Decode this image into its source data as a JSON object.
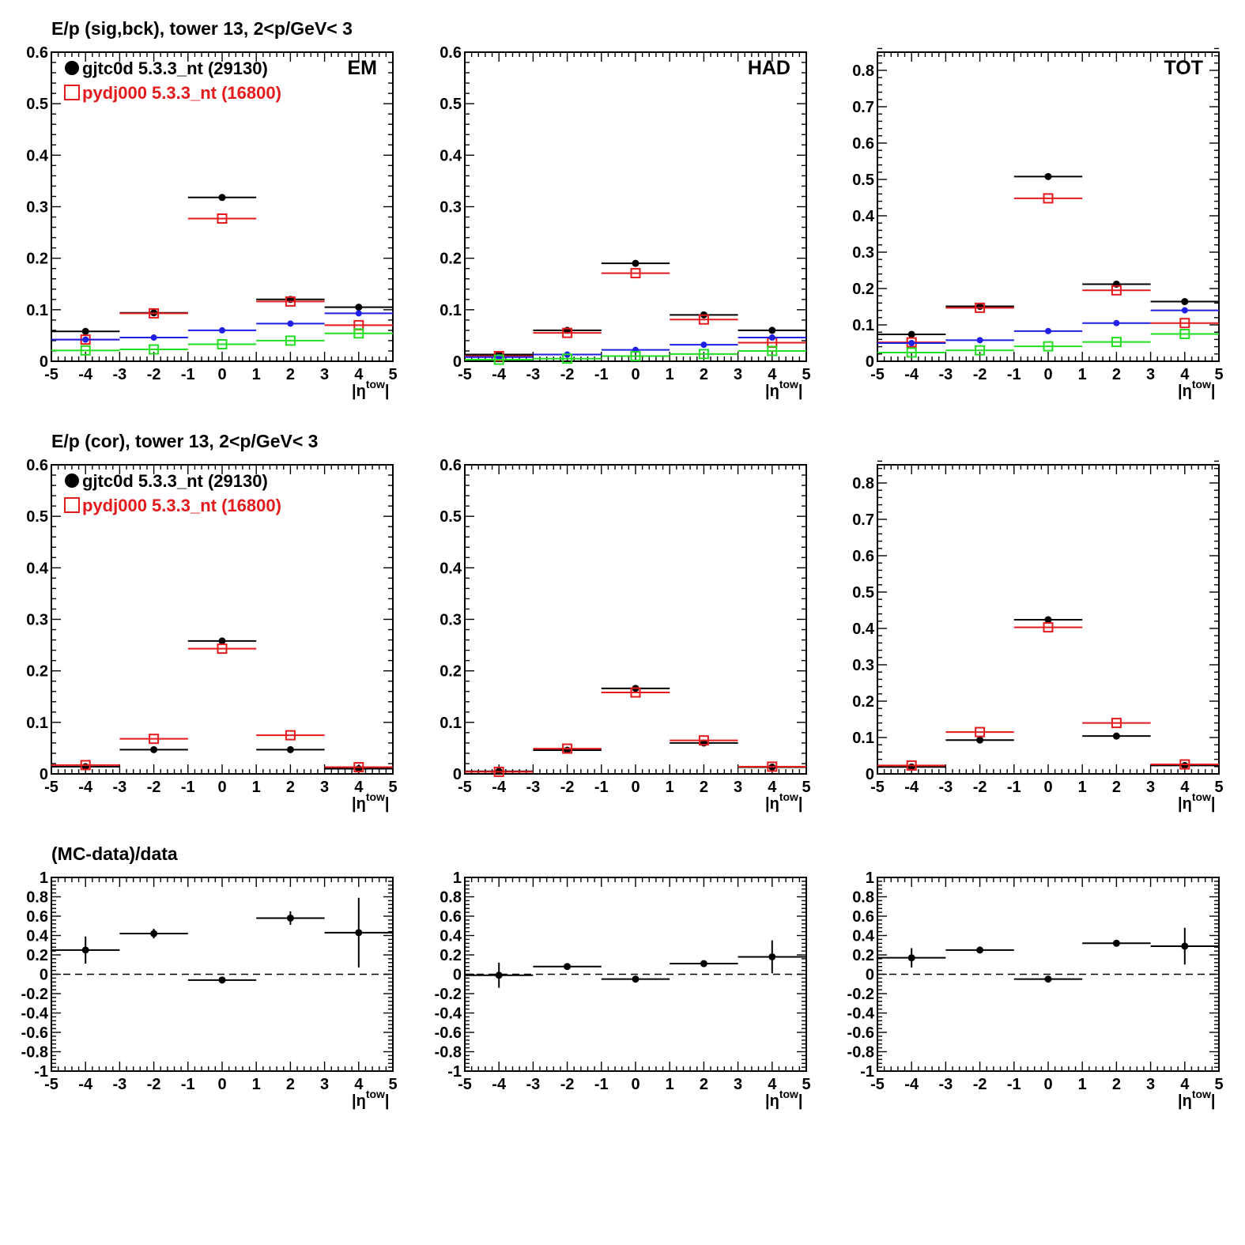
{
  "figure": {
    "row_titles": [
      "E/p (sig,bck), tower 13,  2<p/GeV< 3",
      "E/p (cor), tower 13,  2<p/GeV< 3",
      "(MC-data)/data"
    ],
    "xlabel": "|η",
    "xlabel_sup": "tow",
    "xlabel_end": "|",
    "legend": [
      {
        "label": "gjtc0d 5.3.3_nt (29130)",
        "color": "#000000",
        "marker": "filled-circle"
      },
      {
        "label": "pydj000 5.3.3_nt (16800)",
        "color": "#e41a1c",
        "marker": "open-square"
      }
    ],
    "colors": {
      "data": "#000000",
      "mc": "#e41a1c",
      "blue": "#1f1fe6",
      "green": "#22dd22",
      "reference_line": "#000000"
    }
  },
  "chart_data": [
    {
      "type": "scatter",
      "panel": "sig-bck-em",
      "title": "E/p (sig,bck), tower 13,  2<p/GeV< 3",
      "label": "EM",
      "xlim": [
        -5,
        5
      ],
      "ylim": [
        0,
        0.6
      ],
      "xticks": [
        -5,
        -4,
        -3,
        -2,
        -1,
        0,
        1,
        2,
        3,
        4,
        5
      ],
      "yticks": [
        0,
        0.1,
        0.2,
        0.3,
        0.4,
        0.5,
        0.6
      ],
      "x": [
        -4,
        -2,
        0,
        2,
        4
      ],
      "x_bin_halfwidth": 1,
      "legend": "top-left",
      "series": [
        {
          "name": "gjtc0d 5.3.3_nt (29130)",
          "marker": "filled-circle",
          "color": "#000000",
          "values": [
            0.058,
            0.094,
            0.318,
            0.12,
            0.105
          ]
        },
        {
          "name": "pydj000 5.3.3_nt (16800)",
          "marker": "open-square",
          "color": "#e41a1c",
          "values": [
            0.042,
            0.093,
            0.277,
            0.116,
            0.07
          ]
        },
        {
          "marker": "filled-circle-small",
          "color": "#1f1fe6",
          "values": [
            0.042,
            0.046,
            0.06,
            0.073,
            0.093
          ]
        },
        {
          "marker": "open-square",
          "color": "#22dd22",
          "values": [
            0.021,
            0.023,
            0.033,
            0.04,
            0.054
          ]
        }
      ]
    },
    {
      "type": "scatter",
      "panel": "sig-bck-had",
      "label": "HAD",
      "xlim": [
        -5,
        5
      ],
      "ylim": [
        0,
        0.6
      ],
      "xticks": [
        -5,
        -4,
        -3,
        -2,
        -1,
        0,
        1,
        2,
        3,
        4,
        5
      ],
      "yticks": [
        0,
        0.1,
        0.2,
        0.3,
        0.4,
        0.5,
        0.6
      ],
      "x": [
        -4,
        -2,
        0,
        2,
        4
      ],
      "x_bin_halfwidth": 1,
      "series": [
        {
          "marker": "filled-circle",
          "color": "#000000",
          "values": [
            0.013,
            0.06,
            0.19,
            0.09,
            0.06
          ]
        },
        {
          "marker": "open-square",
          "color": "#e41a1c",
          "values": [
            0.01,
            0.055,
            0.171,
            0.081,
            0.036
          ]
        },
        {
          "marker": "filled-circle-small",
          "color": "#1f1fe6",
          "values": [
            0.008,
            0.013,
            0.022,
            0.032,
            0.046
          ]
        },
        {
          "marker": "open-square",
          "color": "#22dd22",
          "values": [
            0.003,
            0.005,
            0.01,
            0.014,
            0.02
          ]
        }
      ]
    },
    {
      "type": "scatter",
      "panel": "sig-bck-tot",
      "label": "TOT",
      "xlim": [
        -5,
        5
      ],
      "ylim": [
        0,
        0.85
      ],
      "xticks": [
        -5,
        -4,
        -3,
        -2,
        -1,
        0,
        1,
        2,
        3,
        4,
        5
      ],
      "yticks": [
        0,
        0.1,
        0.2,
        0.3,
        0.4,
        0.5,
        0.6,
        0.7,
        0.8
      ],
      "x": [
        -4,
        -2,
        0,
        2,
        4
      ],
      "x_bin_halfwidth": 1,
      "series": [
        {
          "marker": "filled-circle",
          "color": "#000000",
          "values": [
            0.074,
            0.151,
            0.508,
            0.212,
            0.164
          ]
        },
        {
          "marker": "open-square",
          "color": "#e41a1c",
          "values": [
            0.052,
            0.147,
            0.448,
            0.195,
            0.105
          ]
        },
        {
          "marker": "filled-circle-small",
          "color": "#1f1fe6",
          "values": [
            0.05,
            0.058,
            0.083,
            0.105,
            0.14
          ]
        },
        {
          "marker": "open-square",
          "color": "#22dd22",
          "values": [
            0.024,
            0.03,
            0.041,
            0.053,
            0.075
          ]
        }
      ]
    },
    {
      "type": "scatter",
      "panel": "cor-em",
      "title": "E/p (cor), tower 13,  2<p/GeV< 3",
      "xlim": [
        -5,
        5
      ],
      "ylim": [
        0,
        0.6
      ],
      "xticks": [
        -5,
        -4,
        -3,
        -2,
        -1,
        0,
        1,
        2,
        3,
        4,
        5
      ],
      "yticks": [
        0,
        0.1,
        0.2,
        0.3,
        0.4,
        0.5,
        0.6
      ],
      "x": [
        -4,
        -2,
        0,
        2,
        4
      ],
      "x_bin_halfwidth": 1,
      "legend": "top-left",
      "series": [
        {
          "name": "gjtc0d 5.3.3_nt (29130)",
          "marker": "filled-circle",
          "color": "#000000",
          "values": [
            0.014,
            0.047,
            0.258,
            0.047,
            0.01
          ]
        },
        {
          "name": "pydj000 5.3.3_nt (16800)",
          "marker": "open-square",
          "color": "#e41a1c",
          "values": [
            0.017,
            0.068,
            0.243,
            0.075,
            0.013
          ]
        }
      ]
    },
    {
      "type": "scatter",
      "panel": "cor-had",
      "xlim": [
        -5,
        5
      ],
      "ylim": [
        0,
        0.6
      ],
      "xticks": [
        -5,
        -4,
        -3,
        -2,
        -1,
        0,
        1,
        2,
        3,
        4,
        5
      ],
      "yticks": [
        0,
        0.1,
        0.2,
        0.3,
        0.4,
        0.5,
        0.6
      ],
      "x": [
        -4,
        -2,
        0,
        2,
        4
      ],
      "x_bin_halfwidth": 1,
      "series": [
        {
          "marker": "filled-circle",
          "color": "#000000",
          "values": [
            0.005,
            0.046,
            0.166,
            0.06,
            0.013
          ]
        },
        {
          "marker": "open-square",
          "color": "#e41a1c",
          "values": [
            0.004,
            0.049,
            0.158,
            0.065,
            0.014
          ]
        }
      ]
    },
    {
      "type": "scatter",
      "panel": "cor-tot",
      "xlim": [
        -5,
        5
      ],
      "ylim": [
        0,
        0.85
      ],
      "xticks": [
        -5,
        -4,
        -3,
        -2,
        -1,
        0,
        1,
        2,
        3,
        4,
        5
      ],
      "yticks": [
        0,
        0.1,
        0.2,
        0.3,
        0.4,
        0.5,
        0.6,
        0.7,
        0.8
      ],
      "x": [
        -4,
        -2,
        0,
        2,
        4
      ],
      "x_bin_halfwidth": 1,
      "series": [
        {
          "marker": "filled-circle",
          "color": "#000000",
          "values": [
            0.019,
            0.093,
            0.424,
            0.104,
            0.023
          ]
        },
        {
          "marker": "open-square",
          "color": "#e41a1c",
          "values": [
            0.023,
            0.115,
            0.403,
            0.14,
            0.026
          ]
        }
      ]
    },
    {
      "type": "scatter",
      "panel": "ratio-em",
      "title": "(MC-data)/data",
      "xlim": [
        -5,
        5
      ],
      "ylim": [
        -1,
        1
      ],
      "xticks": [
        -5,
        -4,
        -3,
        -2,
        -1,
        0,
        1,
        2,
        3,
        4,
        5
      ],
      "yticks": [
        -1,
        -0.8,
        -0.6,
        -0.4,
        -0.2,
        0,
        0.2,
        0.4,
        0.6,
        0.8,
        1
      ],
      "ytick_labels": [
        "-1",
        "-0.8",
        "-0.6",
        "-0.4",
        "-0.2",
        "0",
        "0.2",
        "0.4",
        "0.6",
        "0.8",
        "1"
      ],
      "reference_line": 0,
      "x": [
        -4,
        -2,
        0,
        2,
        4
      ],
      "x_bin_halfwidth": 1,
      "series": [
        {
          "marker": "filled-circle",
          "color": "#000000",
          "values": [
            0.25,
            0.42,
            -0.06,
            0.58,
            0.43
          ],
          "errors": [
            0.14,
            0.05,
            0.01,
            0.07,
            0.36
          ]
        }
      ]
    },
    {
      "type": "scatter",
      "panel": "ratio-had",
      "xlim": [
        -5,
        5
      ],
      "ylim": [
        -1,
        1
      ],
      "xticks": [
        -5,
        -4,
        -3,
        -2,
        -1,
        0,
        1,
        2,
        3,
        4,
        5
      ],
      "yticks": [
        -1,
        -0.8,
        -0.6,
        -0.4,
        -0.2,
        0,
        0.2,
        0.4,
        0.6,
        0.8,
        1
      ],
      "ytick_labels": [
        "-1",
        "-0.8",
        "-0.6",
        "-0.4",
        "-0.2",
        "0",
        "0.2",
        "0.4",
        "0.6",
        "0.8",
        "1"
      ],
      "reference_line": 0,
      "x": [
        -4,
        -2,
        0,
        2,
        4
      ],
      "x_bin_halfwidth": 1,
      "series": [
        {
          "marker": "filled-circle",
          "color": "#000000",
          "values": [
            -0.01,
            0.08,
            -0.05,
            0.11,
            0.18
          ],
          "errors": [
            0.13,
            0.02,
            0.01,
            0.03,
            0.17
          ]
        }
      ]
    },
    {
      "type": "scatter",
      "panel": "ratio-tot",
      "xlim": [
        -5,
        5
      ],
      "ylim": [
        -1,
        1
      ],
      "xticks": [
        -5,
        -4,
        -3,
        -2,
        -1,
        0,
        1,
        2,
        3,
        4,
        5
      ],
      "yticks": [
        -1,
        -0.8,
        -0.6,
        -0.4,
        -0.2,
        0,
        0.2,
        0.4,
        0.6,
        0.8,
        1
      ],
      "ytick_labels": [
        "-1",
        "-0.8",
        "-0.6",
        "-0.4",
        "-0.2",
        "0",
        "0.2",
        "0.4",
        "0.6",
        "0.8",
        "1"
      ],
      "reference_line": 0,
      "x": [
        -4,
        -2,
        0,
        2,
        4
      ],
      "x_bin_halfwidth": 1,
      "series": [
        {
          "marker": "filled-circle",
          "color": "#000000",
          "values": [
            0.17,
            0.25,
            -0.05,
            0.32,
            0.29
          ],
          "errors": [
            0.1,
            0.02,
            0.01,
            0.02,
            0.19
          ]
        }
      ]
    }
  ]
}
